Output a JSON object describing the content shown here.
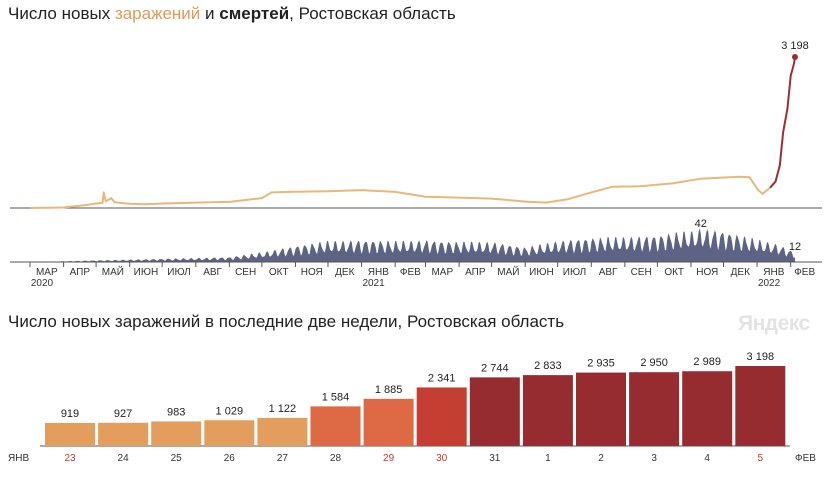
{
  "header": {
    "title_part1": "Число новых ",
    "title_infections": "заражений",
    "title_part2": " и ",
    "title_deaths": "смертей",
    "title_part3": ", Ростовская область"
  },
  "bottom_title": "Число новых заражений в последние две недели, Ростовская область",
  "logo": "Яндекс",
  "colors": {
    "infections_line": "#e7b879",
    "infections_recent": "#9b2e32",
    "deaths_area": "#5d6385",
    "axis": "#555555",
    "bar_light": "#e39d5d",
    "bar_mid": "#dd6a45",
    "bar_red": "#c43e32",
    "bar_dark": "#962c30",
    "weekend_label": "#c0392b"
  },
  "chart_data": [
    {
      "type": "line",
      "name": "infections",
      "x_start": "2020-03-01",
      "x_end": "2022-02-05",
      "points": [
        [
          "2020-03-01",
          0
        ],
        [
          "2020-04-01",
          10
        ],
        [
          "2020-04-20",
          60
        ],
        [
          "2020-05-01",
          95
        ],
        [
          "2020-05-07",
          110
        ],
        [
          "2020-05-08",
          330
        ],
        [
          "2020-05-10",
          140
        ],
        [
          "2020-05-15",
          210
        ],
        [
          "2020-05-18",
          120
        ],
        [
          "2020-06-01",
          90
        ],
        [
          "2020-06-15",
          80
        ],
        [
          "2020-07-01",
          95
        ],
        [
          "2020-08-01",
          115
        ],
        [
          "2020-09-01",
          130
        ],
        [
          "2020-10-01",
          210
        ],
        [
          "2020-10-10",
          330
        ],
        [
          "2020-11-01",
          345
        ],
        [
          "2020-12-01",
          355
        ],
        [
          "2021-01-01",
          380
        ],
        [
          "2021-02-01",
          340
        ],
        [
          "2021-03-01",
          240
        ],
        [
          "2021-04-01",
          220
        ],
        [
          "2021-05-01",
          200
        ],
        [
          "2021-06-01",
          135
        ],
        [
          "2021-06-20",
          115
        ],
        [
          "2021-07-10",
          185
        ],
        [
          "2021-08-01",
          330
        ],
        [
          "2021-08-20",
          450
        ],
        [
          "2021-09-15",
          460
        ],
        [
          "2021-10-15",
          520
        ],
        [
          "2021-11-10",
          620
        ],
        [
          "2021-12-15",
          660
        ],
        [
          "2021-12-25",
          650
        ],
        [
          "2022-01-02",
          380
        ],
        [
          "2022-01-06",
          300
        ],
        [
          "2022-01-13",
          430
        ],
        [
          "2022-01-18",
          560
        ],
        [
          "2022-01-22",
          900
        ],
        [
          "2022-01-25",
          1600
        ],
        [
          "2022-01-29",
          2100
        ],
        [
          "2022-02-01",
          2800
        ],
        [
          "2022-02-04",
          3050
        ],
        [
          "2022-02-05",
          3198
        ]
      ],
      "y_max": 3198,
      "last_label": "3 198"
    },
    {
      "type": "area",
      "name": "deaths",
      "x_start": "2020-03-01",
      "x_end": "2022-02-05",
      "envelope": [
        [
          "2020-03-01",
          0
        ],
        [
          "2020-05-01",
          2
        ],
        [
          "2020-06-01",
          3
        ],
        [
          "2020-07-01",
          4
        ],
        [
          "2020-08-01",
          5
        ],
        [
          "2020-09-01",
          6
        ],
        [
          "2020-10-01",
          12
        ],
        [
          "2020-11-01",
          20
        ],
        [
          "2020-12-01",
          26
        ],
        [
          "2021-01-01",
          27
        ],
        [
          "2021-02-01",
          26
        ],
        [
          "2021-03-01",
          27
        ],
        [
          "2021-04-01",
          25
        ],
        [
          "2021-05-01",
          25
        ],
        [
          "2021-06-01",
          18
        ],
        [
          "2021-07-01",
          26
        ],
        [
          "2021-08-01",
          30
        ],
        [
          "2021-09-01",
          31
        ],
        [
          "2021-10-01",
          33
        ],
        [
          "2021-10-20",
          37
        ],
        [
          "2021-11-01",
          38
        ],
        [
          "2021-11-10",
          42
        ],
        [
          "2021-12-01",
          38
        ],
        [
          "2022-01-01",
          28
        ],
        [
          "2022-01-20",
          22
        ],
        [
          "2022-02-05",
          12
        ]
      ],
      "y_max": 42,
      "peak_label": "42",
      "last_label": "12"
    },
    {
      "type": "bar",
      "categories": [
        "23",
        "24",
        "25",
        "26",
        "27",
        "28",
        "29",
        "30",
        "31",
        "1",
        "2",
        "3",
        "4",
        "5"
      ],
      "values": [
        919,
        927,
        983,
        1029,
        1122,
        1584,
        1885,
        2341,
        2744,
        2833,
        2935,
        2950,
        2989,
        3198
      ],
      "value_labels": [
        "919",
        "927",
        "983",
        "1 029",
        "1 122",
        "1 584",
        "1 885",
        "2 341",
        "2 744",
        "2 833",
        "2 935",
        "2 950",
        "2 989",
        "3 198"
      ],
      "weekend": [
        true,
        false,
        false,
        false,
        false,
        false,
        true,
        true,
        false,
        false,
        false,
        false,
        false,
        true
      ],
      "left_label": "ЯНВ",
      "right_label": "ФЕВ",
      "ylim": [
        0,
        3198
      ]
    }
  ],
  "x_axis": {
    "months": [
      "МАР",
      "АПР",
      "МАЙ",
      "ИЮН",
      "ИЮЛ",
      "АВГ",
      "СЕН",
      "ОКТ",
      "НОЯ",
      "ДЕК",
      "ЯНВ",
      "ФЕВ",
      "МАР",
      "АПР",
      "МАЙ",
      "ИЮН",
      "ИЮЛ",
      "АВГ",
      "СЕН",
      "ОКТ",
      "НОЯ",
      "ДЕК",
      "ЯНВ",
      "ФЕВ"
    ],
    "month_dates": [
      "2020-03-01",
      "2020-04-01",
      "2020-05-01",
      "2020-06-01",
      "2020-07-01",
      "2020-08-01",
      "2020-09-01",
      "2020-10-01",
      "2020-11-01",
      "2020-12-01",
      "2021-01-01",
      "2021-02-01",
      "2021-03-01",
      "2021-04-01",
      "2021-05-01",
      "2021-06-01",
      "2021-07-01",
      "2021-08-01",
      "2021-09-01",
      "2021-10-01",
      "2021-11-01",
      "2021-12-01",
      "2022-01-01",
      "2022-02-01"
    ],
    "years": [
      {
        "label": "2020",
        "date": "2020-03-01"
      },
      {
        "label": "2021",
        "date": "2021-01-01"
      },
      {
        "label": "2022",
        "date": "2022-01-01"
      }
    ]
  }
}
